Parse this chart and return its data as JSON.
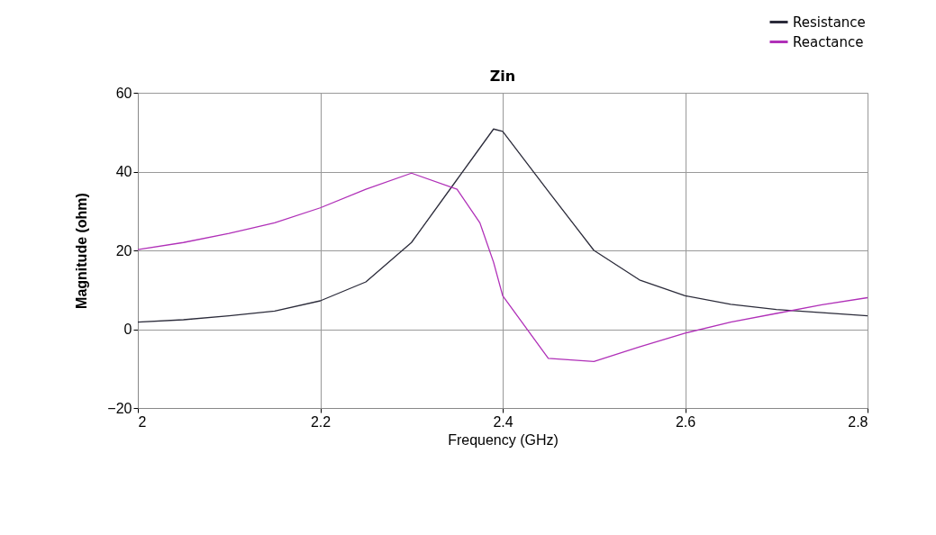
{
  "chart_data": {
    "type": "line",
    "title": "Zin",
    "xlabel": "Frequency (GHz)",
    "ylabel": "Magnitude (ohm)",
    "x": [
      2.0,
      2.05,
      2.1,
      2.15,
      2.2,
      2.25,
      2.3,
      2.35,
      2.375,
      2.39,
      2.4,
      2.45,
      2.5,
      2.55,
      2.6,
      2.65,
      2.7,
      2.75,
      2.8
    ],
    "series": [
      {
        "name": "Resistance",
        "color": "#2b2b3a",
        "values": [
          1.8,
          2.4,
          3.4,
          4.6,
          7.2,
          12,
          22,
          38,
          46,
          50.8,
          50.2,
          35,
          20,
          12.5,
          8.5,
          6.3,
          5,
          4.2,
          3.4
        ]
      },
      {
        "name": "Reactance",
        "color": "#b030b8",
        "values": [
          20.2,
          22,
          24.3,
          27,
          30.8,
          35.5,
          39.6,
          35.5,
          27,
          17,
          8.5,
          -7.4,
          -8.2,
          -4.5,
          -1,
          1.8,
          4.0,
          6.2,
          8.0
        ]
      }
    ],
    "xlim": [
      2,
      2.8
    ],
    "xticks": [
      2,
      2.2,
      2.4,
      2.6,
      2.8
    ],
    "ylim": [
      -20,
      60
    ],
    "yticks": [
      -20,
      0,
      20,
      40,
      60
    ],
    "grid": true,
    "legend": "top right",
    "marker": "none",
    "line_style": "solid"
  }
}
